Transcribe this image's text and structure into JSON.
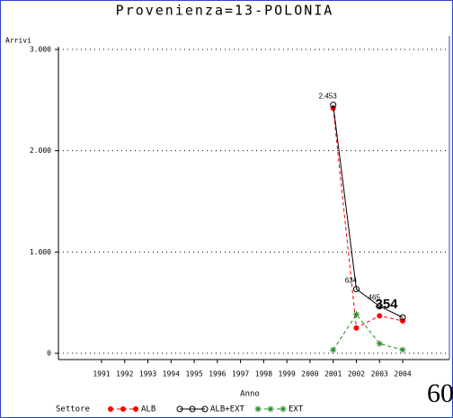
{
  "chart_data": {
    "type": "line",
    "title": "Provenienza=13-POLONIA",
    "y_label": "Arrivi",
    "x_label": "Anno",
    "legend_title": "Settore",
    "annotation": "60",
    "categories": [
      "1991",
      "1992",
      "1993",
      "1994",
      "1995",
      "1996",
      "1997",
      "1998",
      "1999",
      "2000",
      "2001",
      "2002",
      "2003",
      "2004"
    ],
    "ylim": [
      0,
      3000
    ],
    "yticks": [
      0,
      {
        "value": 1000,
        "label": "1.000"
      },
      {
        "value": 2000,
        "label": "2.000"
      },
      {
        "value": 3000,
        "label": "3.000"
      }
    ],
    "grid": true,
    "legend": "bottom",
    "series": [
      {
        "name": "ALB",
        "color": "#ff0000",
        "marker": "dot",
        "dashed": true,
        "values": [
          null,
          null,
          null,
          null,
          null,
          null,
          null,
          null,
          null,
          null,
          2420,
          250,
          370,
          320
        ]
      },
      {
        "name": "ALB+EXT",
        "color": "#000000",
        "marker": "circle",
        "dashed": false,
        "values": [
          null,
          null,
          null,
          null,
          null,
          null,
          null,
          null,
          null,
          null,
          2453,
          634,
          465,
          354
        ],
        "value_labels": [
          null,
          null,
          null,
          null,
          null,
          null,
          null,
          null,
          null,
          null,
          "2.453",
          "634",
          "465",
          "354"
        ]
      },
      {
        "name": "EXT",
        "color": "#228b22",
        "marker": "star",
        "dashed": true,
        "values": [
          null,
          null,
          null,
          null,
          null,
          null,
          null,
          null,
          null,
          null,
          33,
          384,
          95,
          34
        ]
      }
    ]
  }
}
